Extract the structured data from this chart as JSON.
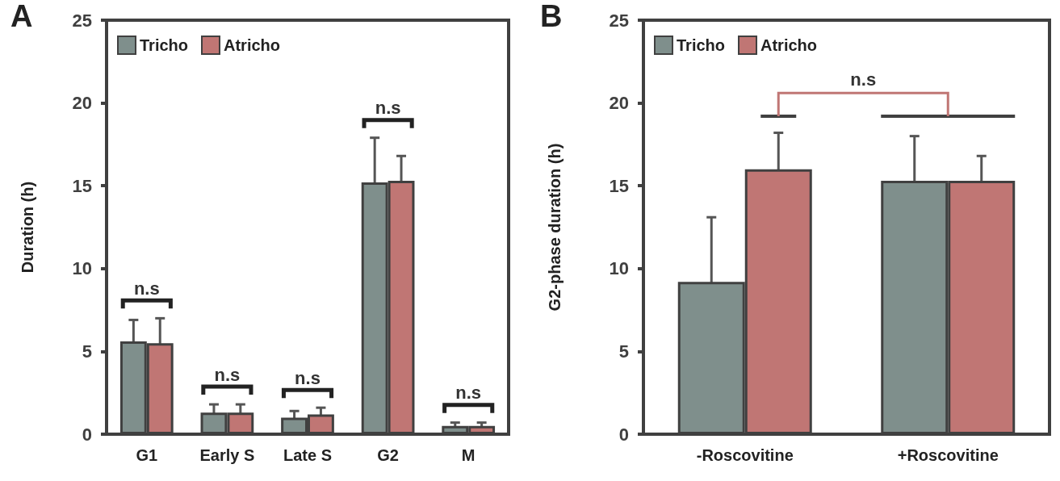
{
  "chart_data": [
    {
      "type": "bar",
      "title": "A",
      "ylabel": "Duration (h)",
      "categories": [
        "G1",
        "Early S",
        "Late S",
        "G2",
        "M"
      ],
      "series": [
        {
          "name": "Tricho",
          "color": "#7f8f8c",
          "values": [
            5.6,
            1.3,
            1.0,
            15.2,
            0.5
          ],
          "errors": [
            1.3,
            0.5,
            0.4,
            2.7,
            0.2
          ]
        },
        {
          "name": "Atricho",
          "color": "#c07674",
          "values": [
            5.5,
            1.3,
            1.2,
            15.3,
            0.5
          ],
          "errors": [
            1.5,
            0.5,
            0.4,
            1.5,
            0.2
          ]
        }
      ],
      "ylim": [
        0,
        25
      ],
      "yticks": [
        0,
        5,
        10,
        15,
        20,
        25
      ],
      "grid": false,
      "legend": "top left",
      "annotations": [
        "n.s",
        "n.s",
        "n.s",
        "n.s",
        "n.s"
      ]
    },
    {
      "type": "bar",
      "title": "B",
      "ylabel": "G2-phase duration (h)",
      "categories": [
        "-Roscovitine",
        "+Roscovitine"
      ],
      "series": [
        {
          "name": "Tricho",
          "color": "#7f8f8c",
          "values": [
            9.2,
            15.3
          ],
          "errors": [
            3.9,
            2.7
          ]
        },
        {
          "name": "Atricho",
          "color": "#c07674",
          "values": [
            16.0,
            15.3
          ],
          "errors": [
            2.2,
            1.5
          ]
        }
      ],
      "ylim": [
        0,
        25
      ],
      "yticks": [
        0,
        5,
        10,
        15,
        20,
        25
      ],
      "grid": false,
      "legend": "top left",
      "annotations": [
        "n.s"
      ]
    }
  ]
}
